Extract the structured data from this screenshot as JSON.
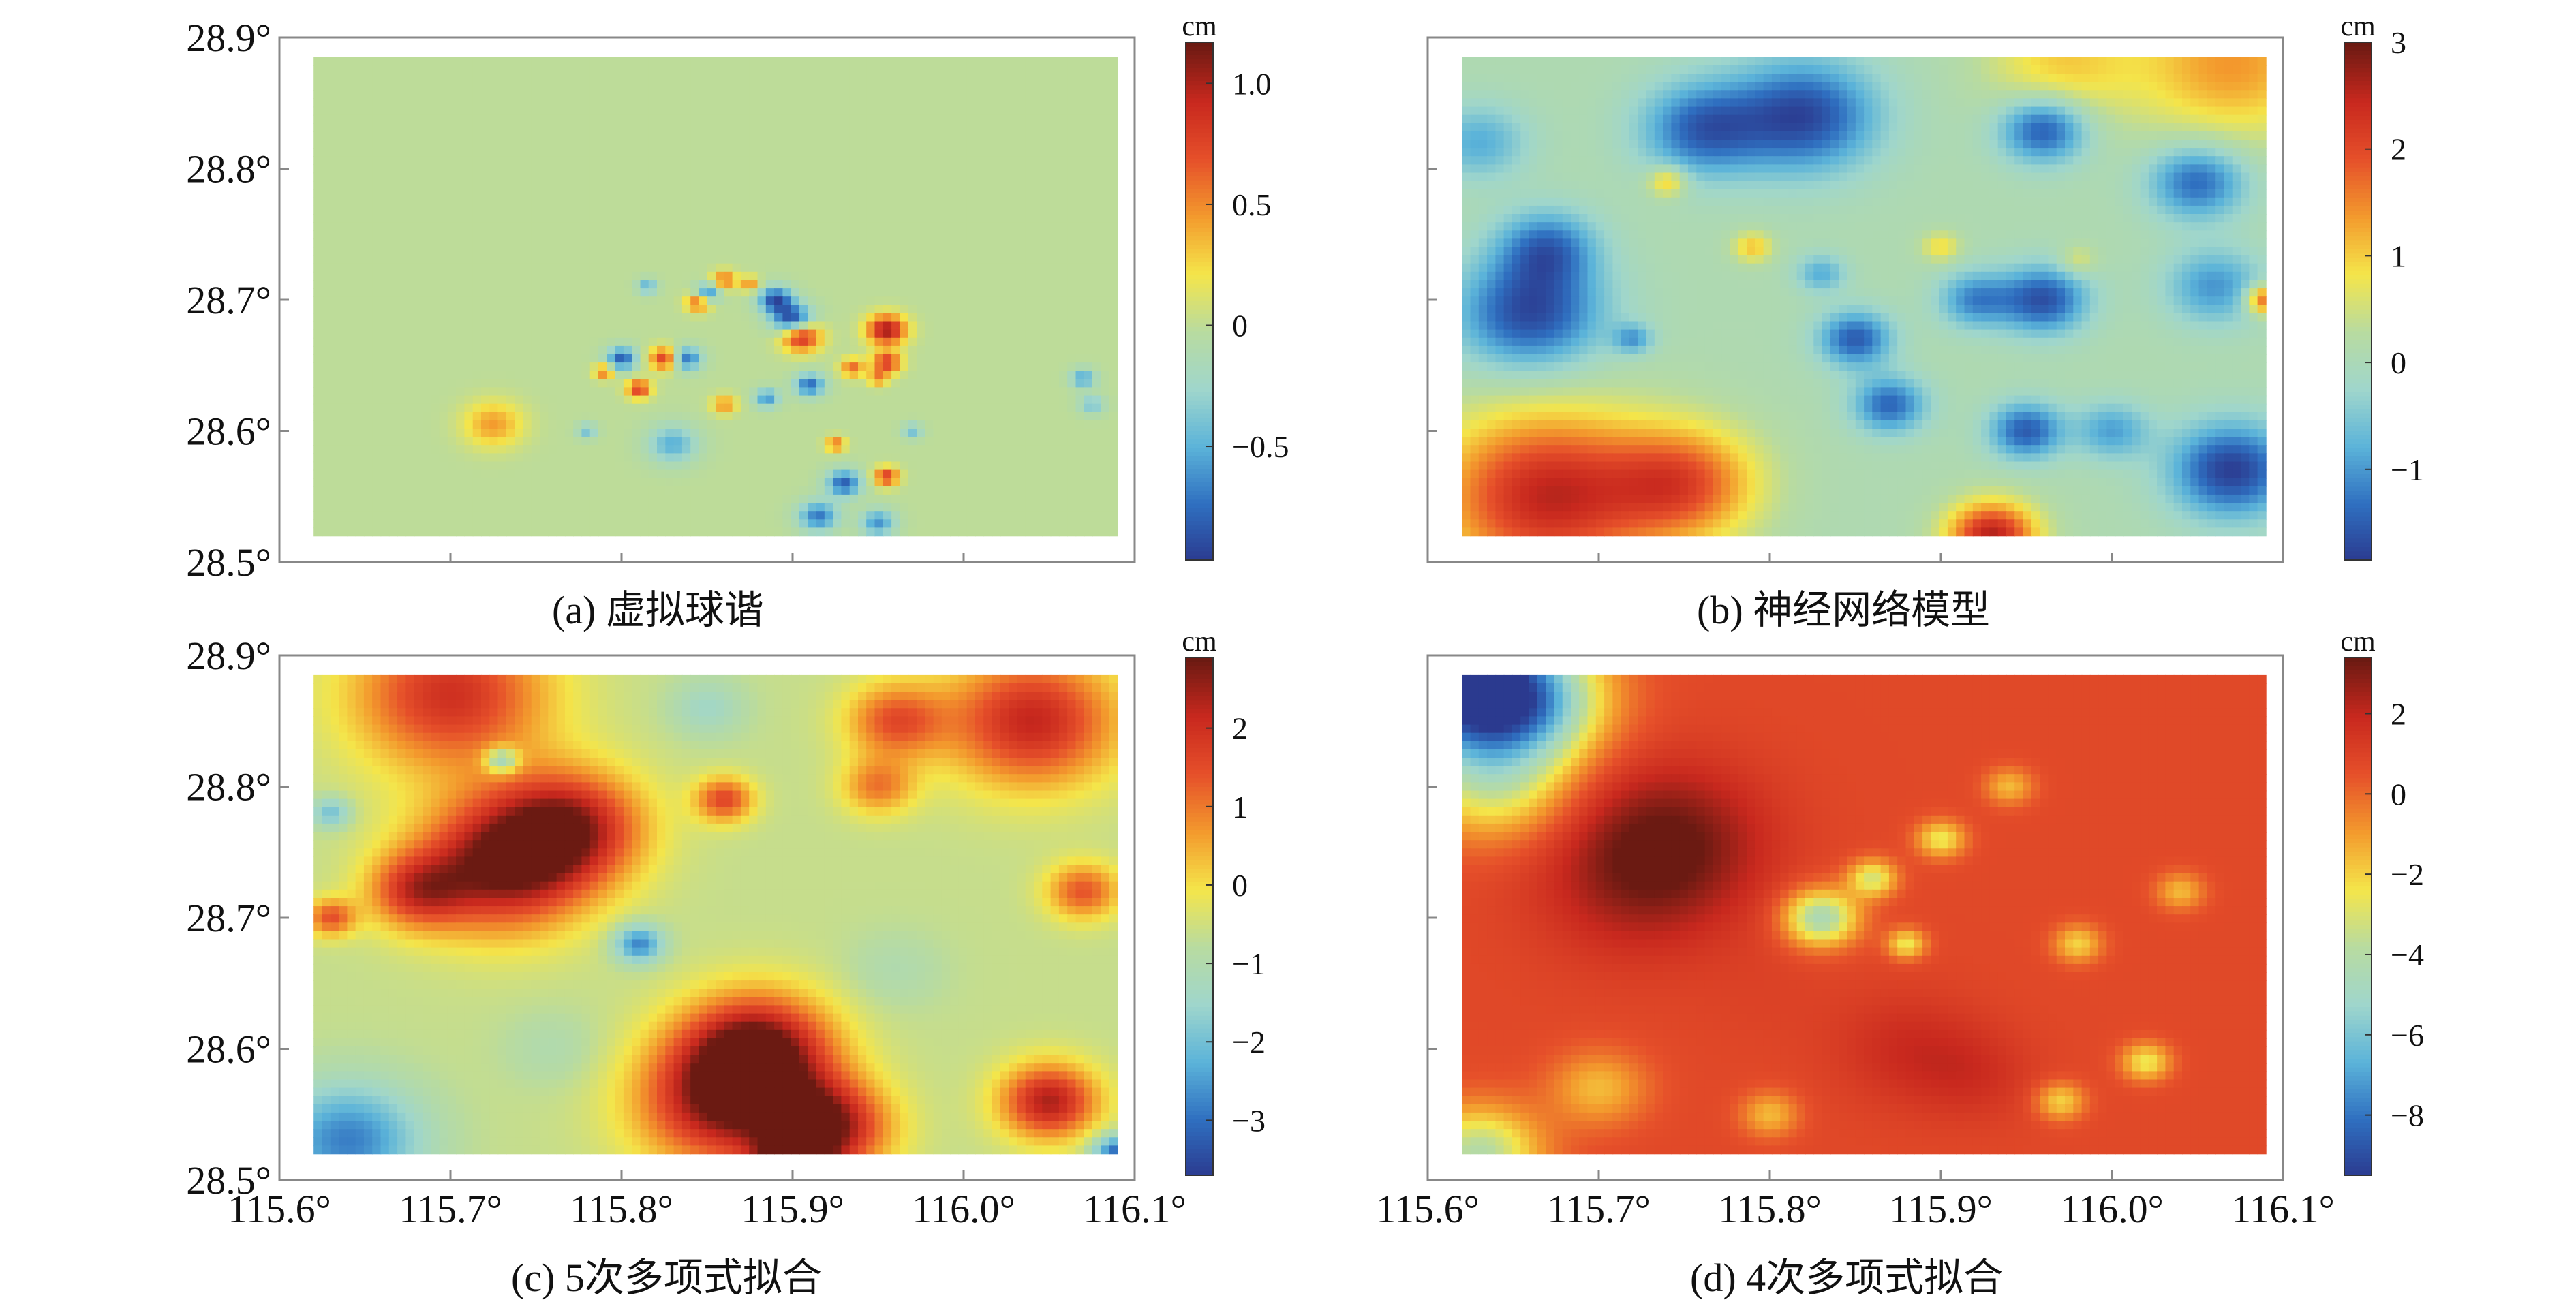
{
  "colors": {
    "jet": [
      "#2b3a8f",
      "#2f6fc0",
      "#5bb3d9",
      "#9fd6cc",
      "#b8dba0",
      "#f4e54a",
      "#f39a2d",
      "#e6502a",
      "#c8281e",
      "#6b1a12"
    ],
    "frame": "#888888",
    "background": "#ffffff"
  },
  "chart_data": [
    {
      "id": "a",
      "type": "heatmap",
      "caption": "(a) 虚拟球谐",
      "colorbar_unit": "cm",
      "colorbar_ticks": [
        {
          "value": 1.0,
          "label": "1.0"
        },
        {
          "value": 0.5,
          "label": "0.5"
        },
        {
          "value": 0,
          "label": "0"
        },
        {
          "value": -0.5,
          "label": "−0.5"
        }
      ],
      "clim": [
        -0.97,
        1.17
      ],
      "x_ticks": [
        115.6,
        115.7,
        115.8,
        115.9,
        116.0,
        116.1
      ],
      "x_tick_labels": [],
      "y_ticks": [
        28.5,
        28.6,
        28.7,
        28.8,
        28.9
      ],
      "y_tick_labels": [
        "28.5°",
        "28.6°",
        "28.7°",
        "28.8°",
        "28.9°"
      ],
      "xlim": [
        115.6,
        116.1
      ],
      "ylim": [
        28.5,
        28.9
      ],
      "base": 0.0,
      "blobs": [
        {
          "x": 115.955,
          "y": 28.677,
          "v": 1.05,
          "s": 0.008
        },
        {
          "x": 115.905,
          "y": 28.672,
          "v": 0.95,
          "s": 0.008
        },
        {
          "x": 115.825,
          "y": 28.655,
          "v": 0.8,
          "s": 0.006
        },
        {
          "x": 115.935,
          "y": 28.648,
          "v": 0.6,
          "s": 0.005
        },
        {
          "x": 115.955,
          "y": 28.652,
          "v": 0.8,
          "s": 0.006
        },
        {
          "x": 115.81,
          "y": 28.632,
          "v": 0.8,
          "s": 0.005
        },
        {
          "x": 115.845,
          "y": 28.698,
          "v": 0.7,
          "s": 0.005
        },
        {
          "x": 115.86,
          "y": 28.715,
          "v": 0.6,
          "s": 0.005
        },
        {
          "x": 115.875,
          "y": 28.712,
          "v": 0.5,
          "s": 0.004
        },
        {
          "x": 115.955,
          "y": 28.565,
          "v": 0.8,
          "s": 0.005
        },
        {
          "x": 115.925,
          "y": 28.59,
          "v": 0.6,
          "s": 0.004
        },
        {
          "x": 115.86,
          "y": 28.62,
          "v": 0.5,
          "s": 0.005
        },
        {
          "x": 115.79,
          "y": 28.645,
          "v": 0.6,
          "s": 0.004
        },
        {
          "x": 115.725,
          "y": 28.605,
          "v": 0.45,
          "s": 0.012
        },
        {
          "x": 115.95,
          "y": 28.64,
          "v": 0.5,
          "s": 0.004
        },
        {
          "x": 115.9,
          "y": 28.685,
          "v": -0.95,
          "s": 0.008
        },
        {
          "x": 115.89,
          "y": 28.7,
          "v": -0.85,
          "s": 0.007
        },
        {
          "x": 115.85,
          "y": 28.705,
          "v": -0.7,
          "s": 0.005
        },
        {
          "x": 115.838,
          "y": 28.655,
          "v": -0.75,
          "s": 0.006
        },
        {
          "x": 115.8,
          "y": 28.655,
          "v": -0.8,
          "s": 0.006
        },
        {
          "x": 115.91,
          "y": 28.635,
          "v": -0.75,
          "s": 0.006
        },
        {
          "x": 115.885,
          "y": 28.625,
          "v": -0.6,
          "s": 0.005
        },
        {
          "x": 115.93,
          "y": 28.56,
          "v": -0.8,
          "s": 0.007
        },
        {
          "x": 115.915,
          "y": 28.535,
          "v": -0.7,
          "s": 0.008
        },
        {
          "x": 115.95,
          "y": 28.53,
          "v": -0.6,
          "s": 0.007
        },
        {
          "x": 115.83,
          "y": 28.59,
          "v": -0.5,
          "s": 0.01
        },
        {
          "x": 115.815,
          "y": 28.71,
          "v": -0.5,
          "s": 0.004
        },
        {
          "x": 116.07,
          "y": 28.64,
          "v": -0.55,
          "s": 0.005
        },
        {
          "x": 116.075,
          "y": 28.62,
          "v": -0.4,
          "s": 0.005
        },
        {
          "x": 115.78,
          "y": 28.6,
          "v": -0.4,
          "s": 0.004
        },
        {
          "x": 115.97,
          "y": 28.6,
          "v": -0.4,
          "s": 0.004
        }
      ]
    },
    {
      "id": "b",
      "type": "heatmap",
      "caption": "(b) 神经网络模型",
      "colorbar_unit": "cm",
      "colorbar_ticks": [
        {
          "value": 3,
          "label": "3"
        },
        {
          "value": 2,
          "label": "2"
        },
        {
          "value": 1,
          "label": "1"
        },
        {
          "value": 0,
          "label": "0"
        },
        {
          "value": -1,
          "label": "−1"
        }
      ],
      "clim": [
        -1.85,
        3.0
      ],
      "x_ticks": [
        115.6,
        115.7,
        115.8,
        115.9,
        116.0,
        116.1
      ],
      "x_tick_labels": [],
      "y_ticks": [
        28.5,
        28.6,
        28.7,
        28.8,
        28.9
      ],
      "y_tick_labels": [],
      "xlim": [
        115.6,
        116.1
      ],
      "ylim": [
        28.5,
        28.9
      ],
      "base": 0.1,
      "blobs": [
        {
          "x": 115.82,
          "y": 28.84,
          "v": -1.7,
          "s": 0.03
        },
        {
          "x": 115.76,
          "y": 28.83,
          "v": -1.4,
          "s": 0.025
        },
        {
          "x": 115.66,
          "y": 28.69,
          "v": -1.7,
          "s": 0.03
        },
        {
          "x": 115.67,
          "y": 28.74,
          "v": -1.2,
          "s": 0.02
        },
        {
          "x": 115.96,
          "y": 28.83,
          "v": -1.6,
          "s": 0.018
        },
        {
          "x": 116.05,
          "y": 28.79,
          "v": -1.4,
          "s": 0.02
        },
        {
          "x": 116.06,
          "y": 28.71,
          "v": -1.0,
          "s": 0.02
        },
        {
          "x": 115.96,
          "y": 28.7,
          "v": -1.6,
          "s": 0.018
        },
        {
          "x": 115.92,
          "y": 28.7,
          "v": -1.1,
          "s": 0.015
        },
        {
          "x": 115.85,
          "y": 28.67,
          "v": -1.5,
          "s": 0.015
        },
        {
          "x": 115.87,
          "y": 28.62,
          "v": -1.4,
          "s": 0.015
        },
        {
          "x": 115.95,
          "y": 28.6,
          "v": -1.5,
          "s": 0.015
        },
        {
          "x": 116.07,
          "y": 28.57,
          "v": -1.8,
          "s": 0.025
        },
        {
          "x": 116.0,
          "y": 28.6,
          "v": -0.9,
          "s": 0.015
        },
        {
          "x": 115.72,
          "y": 28.67,
          "v": -0.9,
          "s": 0.008
        },
        {
          "x": 115.83,
          "y": 28.72,
          "v": -0.8,
          "s": 0.01
        },
        {
          "x": 115.67,
          "y": 28.55,
          "v": 2.5,
          "s": 0.045
        },
        {
          "x": 115.75,
          "y": 28.56,
          "v": 1.8,
          "s": 0.03
        },
        {
          "x": 115.93,
          "y": 28.52,
          "v": 2.6,
          "s": 0.018
        },
        {
          "x": 116.07,
          "y": 28.88,
          "v": 1.4,
          "s": 0.04
        },
        {
          "x": 115.97,
          "y": 28.88,
          "v": 1.0,
          "s": 0.03
        },
        {
          "x": 116.09,
          "y": 28.7,
          "v": 2.0,
          "s": 0.008
        },
        {
          "x": 115.74,
          "y": 28.79,
          "v": 1.2,
          "s": 0.008
        },
        {
          "x": 115.79,
          "y": 28.74,
          "v": 1.1,
          "s": 0.008
        },
        {
          "x": 115.9,
          "y": 28.74,
          "v": 0.9,
          "s": 0.008
        },
        {
          "x": 115.98,
          "y": 28.73,
          "v": 0.7,
          "s": 0.008
        },
        {
          "x": 115.63,
          "y": 28.82,
          "v": -0.8,
          "s": 0.02
        }
      ]
    },
    {
      "id": "c",
      "type": "heatmap",
      "caption": "(c) 5次多项式拟合",
      "colorbar_unit": "cm",
      "colorbar_ticks": [
        {
          "value": 2,
          "label": "2"
        },
        {
          "value": 1,
          "label": "1"
        },
        {
          "value": 0,
          "label": "0"
        },
        {
          "value": -1,
          "label": "−1"
        },
        {
          "value": -2,
          "label": "−2"
        },
        {
          "value": -3,
          "label": "−3"
        }
      ],
      "clim": [
        -3.7,
        2.9
      ],
      "x_ticks": [
        115.6,
        115.7,
        115.8,
        115.9,
        116.0,
        116.1
      ],
      "x_tick_labels": [
        "115.6°",
        "115.7°",
        "115.8°",
        "115.9°",
        "116.0°",
        "116.1°"
      ],
      "y_ticks": [
        28.5,
        28.6,
        28.7,
        28.8,
        28.9
      ],
      "y_tick_labels": [
        "28.5°",
        "28.6°",
        "28.7°",
        "28.8°",
        "28.9°"
      ],
      "xlim": [
        115.6,
        116.1
      ],
      "ylim": [
        28.5,
        28.9
      ],
      "base": -0.6,
      "blobs": [
        {
          "x": 115.73,
          "y": 28.74,
          "v": 2.8,
          "s": 0.035
        },
        {
          "x": 115.77,
          "y": 28.77,
          "v": 2.2,
          "s": 0.03
        },
        {
          "x": 115.68,
          "y": 28.72,
          "v": 1.5,
          "s": 0.02
        },
        {
          "x": 115.88,
          "y": 28.6,
          "v": 2.6,
          "s": 0.03
        },
        {
          "x": 115.86,
          "y": 28.56,
          "v": 2.6,
          "s": 0.035
        },
        {
          "x": 115.92,
          "y": 28.54,
          "v": 2.6,
          "s": 0.025
        },
        {
          "x": 115.9,
          "y": 28.51,
          "v": 3.0,
          "s": 0.015
        },
        {
          "x": 116.05,
          "y": 28.56,
          "v": 2.4,
          "s": 0.02
        },
        {
          "x": 115.7,
          "y": 28.87,
          "v": 2.0,
          "s": 0.04
        },
        {
          "x": 116.04,
          "y": 28.85,
          "v": 2.2,
          "s": 0.035
        },
        {
          "x": 115.96,
          "y": 28.85,
          "v": 1.4,
          "s": 0.02
        },
        {
          "x": 115.86,
          "y": 28.79,
          "v": 1.6,
          "s": 0.012
        },
        {
          "x": 115.95,
          "y": 28.8,
          "v": 1.0,
          "s": 0.015
        },
        {
          "x": 116.07,
          "y": 28.72,
          "v": 1.4,
          "s": 0.015
        },
        {
          "x": 115.63,
          "y": 28.7,
          "v": 1.4,
          "s": 0.01
        },
        {
          "x": 115.81,
          "y": 28.68,
          "v": -2.8,
          "s": 0.01
        },
        {
          "x": 115.73,
          "y": 28.82,
          "v": -2.6,
          "s": 0.007
        },
        {
          "x": 115.63,
          "y": 28.78,
          "v": -2.0,
          "s": 0.008
        },
        {
          "x": 115.64,
          "y": 28.53,
          "v": -2.8,
          "s": 0.03
        },
        {
          "x": 116.09,
          "y": 28.52,
          "v": -3.2,
          "s": 0.01
        },
        {
          "x": 115.85,
          "y": 28.86,
          "v": -1.4,
          "s": 0.015
        },
        {
          "x": 115.96,
          "y": 28.66,
          "v": -1.0,
          "s": 0.02
        },
        {
          "x": 115.76,
          "y": 28.6,
          "v": -1.0,
          "s": 0.02
        }
      ]
    },
    {
      "id": "d",
      "type": "heatmap",
      "caption": "(d) 4次多项式拟合",
      "colorbar_unit": "cm",
      "colorbar_ticks": [
        {
          "value": 2,
          "label": "2"
        },
        {
          "value": 0,
          "label": "0"
        },
        {
          "value": -2,
          "label": "−2"
        },
        {
          "value": -4,
          "label": "−4"
        },
        {
          "value": -6,
          "label": "−6"
        },
        {
          "value": -8,
          "label": "−8"
        }
      ],
      "clim": [
        -9.5,
        3.4
      ],
      "x_ticks": [
        115.6,
        115.7,
        115.8,
        115.9,
        116.0,
        116.1
      ],
      "x_tick_labels": [
        "115.6°",
        "115.7°",
        "115.8°",
        "115.9°",
        "116.0°",
        "116.1°"
      ],
      "y_ticks": [
        28.5,
        28.6,
        28.7,
        28.8,
        28.9
      ],
      "y_tick_labels": [],
      "xlim": [
        115.6,
        116.1
      ],
      "ylim": [
        28.5,
        28.9
      ],
      "base": 0.8,
      "blobs": [
        {
          "x": 115.62,
          "y": 28.88,
          "v": -9.8,
          "s": 0.04
        },
        {
          "x": 115.66,
          "y": 28.86,
          "v": -3.5,
          "s": 0.03
        },
        {
          "x": 115.63,
          "y": 28.52,
          "v": -4.0,
          "s": 0.025
        },
        {
          "x": 115.64,
          "y": 28.8,
          "v": -2.5,
          "s": 0.03
        },
        {
          "x": 115.7,
          "y": 28.57,
          "v": -1.5,
          "s": 0.02
        },
        {
          "x": 115.74,
          "y": 28.76,
          "v": 3.2,
          "s": 0.04
        },
        {
          "x": 115.72,
          "y": 28.72,
          "v": 2.0,
          "s": 0.04
        },
        {
          "x": 115.88,
          "y": 28.6,
          "v": 1.8,
          "s": 0.03
        },
        {
          "x": 115.92,
          "y": 28.58,
          "v": 1.6,
          "s": 0.025
        },
        {
          "x": 115.8,
          "y": 28.64,
          "v": 1.0,
          "s": 0.03
        },
        {
          "x": 115.83,
          "y": 28.7,
          "v": -4.5,
          "s": 0.015
        },
        {
          "x": 115.86,
          "y": 28.73,
          "v": -3.0,
          "s": 0.01
        },
        {
          "x": 115.9,
          "y": 28.76,
          "v": -2.5,
          "s": 0.01
        },
        {
          "x": 115.88,
          "y": 28.68,
          "v": -2.5,
          "s": 0.008
        },
        {
          "x": 115.98,
          "y": 28.68,
          "v": -2.0,
          "s": 0.01
        },
        {
          "x": 116.04,
          "y": 28.72,
          "v": -1.5,
          "s": 0.01
        },
        {
          "x": 115.97,
          "y": 28.56,
          "v": -2.0,
          "s": 0.01
        },
        {
          "x": 116.02,
          "y": 28.59,
          "v": -2.5,
          "s": 0.01
        },
        {
          "x": 115.94,
          "y": 28.8,
          "v": -1.5,
          "s": 0.01
        },
        {
          "x": 115.8,
          "y": 28.55,
          "v": -1.5,
          "s": 0.012
        }
      ]
    }
  ]
}
